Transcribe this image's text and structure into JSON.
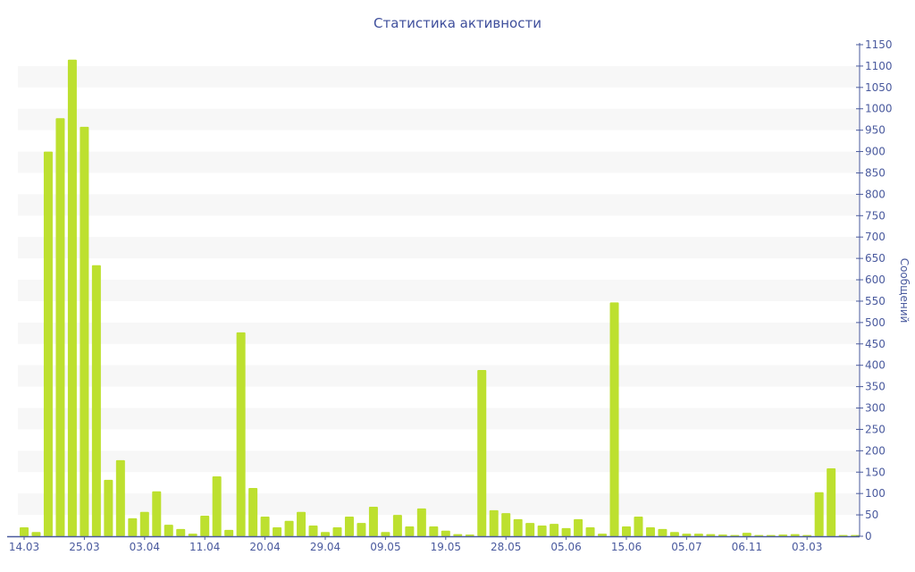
{
  "chart_data": {
    "type": "bar",
    "title": "Статистика активности",
    "xlabel": "",
    "ylabel": "Сообщений",
    "ylim": [
      0,
      1150
    ],
    "ytick_step": 50,
    "y_axis_side": "right",
    "grid": "alternating bands",
    "colors": {
      "bar": "#bde02f",
      "axis": "#4a5a9e",
      "band": "#f7f7f7"
    },
    "x_tick_labels": [
      "14.03",
      "25.03",
      "03.04",
      "11.04",
      "20.04",
      "29.04",
      "09.05",
      "19.05",
      "28.05",
      "05.06",
      "15.06",
      "05.07",
      "06.11",
      "03.03"
    ],
    "x_tick_every": 5,
    "values": [
      21,
      10,
      900,
      978,
      1115,
      958,
      634,
      132,
      178,
      42,
      57,
      105,
      27,
      17,
      6,
      48,
      140,
      15,
      477,
      113,
      46,
      21,
      36,
      57,
      25,
      10,
      21,
      46,
      31,
      69,
      10,
      50,
      23,
      65,
      23,
      13,
      5,
      4,
      389,
      61,
      54,
      40,
      31,
      25,
      29,
      19,
      40,
      21,
      6,
      547,
      23,
      46,
      21,
      17,
      10,
      6,
      6,
      5,
      4,
      3,
      8,
      3,
      3,
      4,
      5,
      3,
      103,
      159,
      3,
      3
    ]
  }
}
